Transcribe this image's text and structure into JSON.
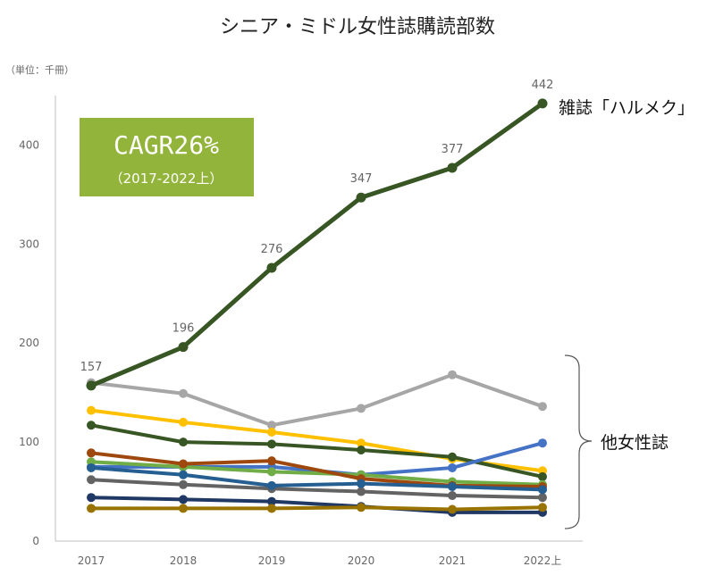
{
  "chart_data": {
    "type": "line",
    "title": "シニア・ミドル女性誌購読部数",
    "unit_label": "（単位：千冊）",
    "categories": [
      "2017",
      "2018",
      "2019",
      "2020",
      "2021",
      "2022上"
    ],
    "y_ticks": [
      0,
      100,
      200,
      300,
      400
    ],
    "ylim": [
      0,
      450
    ],
    "highlight_series": {
      "name": "雑誌「ハルメク」",
      "color": "#375623",
      "values": [
        157,
        196,
        276,
        347,
        377,
        442
      ],
      "labels": [
        "157",
        "196",
        "276",
        "347",
        "377",
        "442"
      ]
    },
    "other_series_label": "他女性誌",
    "series": [
      {
        "name": "other-gray",
        "color": "#a6a6a6",
        "values": [
          160,
          149,
          117,
          134,
          168,
          136
        ]
      },
      {
        "name": "other-yellow",
        "color": "#ffc000",
        "values": [
          132,
          120,
          110,
          99,
          83,
          71
        ]
      },
      {
        "name": "other-darkgreen",
        "color": "#375623",
        "values": [
          117,
          100,
          98,
          92,
          85,
          65
        ]
      },
      {
        "name": "other-blue",
        "color": "#4472c4",
        "values": [
          75,
          75,
          75,
          67,
          74,
          99
        ]
      },
      {
        "name": "other-lightgreen",
        "color": "#70ad47",
        "values": [
          80,
          75,
          70,
          67,
          60,
          57
        ]
      },
      {
        "name": "other-brown",
        "color": "#9e480e",
        "values": [
          89,
          78,
          81,
          63,
          56,
          55
        ]
      },
      {
        "name": "other-darkgray",
        "color": "#636363",
        "values": [
          62,
          57,
          53,
          50,
          46,
          44
        ]
      },
      {
        "name": "other-teal",
        "color": "#255e91",
        "values": [
          74,
          67,
          56,
          58,
          55,
          52
        ]
      },
      {
        "name": "other-navy",
        "color": "#203864",
        "values": [
          44,
          42,
          40,
          35,
          29,
          29
        ]
      },
      {
        "name": "other-ochre",
        "color": "#997300",
        "values": [
          33,
          33,
          33,
          34,
          32,
          34
        ]
      }
    ],
    "cagr_box": {
      "label": "CAGR26%",
      "sublabel": "（2017-2022上）",
      "color": "#92b43b"
    }
  }
}
